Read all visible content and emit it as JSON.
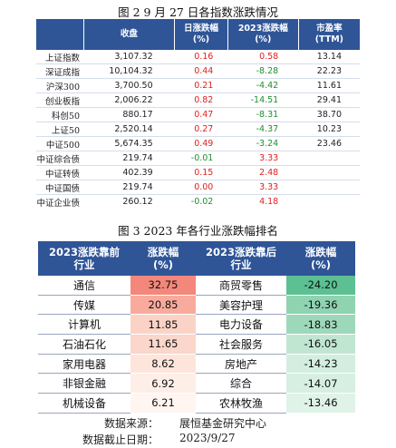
{
  "figure1": {
    "title": "图 2   9 月 27 日各指数涨跌情况",
    "headers": [
      "",
      "收盘",
      "日涨跌幅\n(%)",
      "2023涨跌幅\n(%)",
      "市盈率\n(TTM)"
    ],
    "rows": [
      {
        "name": "上证指数",
        "close": "3,107.32",
        "chg": "0.16",
        "ytd": "0.58",
        "pe": "13.14"
      },
      {
        "name": "深证成指",
        "close": "10,104.32",
        "chg": "0.44",
        "ytd": "-8.28",
        "pe": "22.23"
      },
      {
        "name": "沪深300",
        "close": "3,700.50",
        "chg": "0.21",
        "ytd": "-4.42",
        "pe": "11.61"
      },
      {
        "name": "创业板指",
        "close": "2,006.22",
        "chg": "0.82",
        "ytd": "-14.51",
        "pe": "29.41"
      },
      {
        "name": "科创50",
        "close": "880.17",
        "chg": "0.47",
        "ytd": "-8.31",
        "pe": "38.70"
      },
      {
        "name": "上证50",
        "close": "2,520.14",
        "chg": "0.27",
        "ytd": "-4.37",
        "pe": "10.23"
      },
      {
        "name": "中证500",
        "close": "5,674.35",
        "chg": "0.49",
        "ytd": "-3.24",
        "pe": "23.46"
      },
      {
        "name": "中证综合债",
        "close": "219.74",
        "chg": "-0.01",
        "ytd": "3.33",
        "pe": ""
      },
      {
        "name": "中证转债",
        "close": "402.39",
        "chg": "0.15",
        "ytd": "2.48",
        "pe": ""
      },
      {
        "name": "中证国债",
        "close": "219.74",
        "chg": "0.00",
        "ytd": "3.33",
        "pe": ""
      },
      {
        "name": "中证企业债",
        "close": "260.12",
        "chg": "-0.02",
        "ytd": "4.18",
        "pe": ""
      }
    ]
  },
  "figure2": {
    "title": "图 3   2023 年各行业涨跌幅排名",
    "headers": [
      "2023涨跌靠前\n行业",
      "涨跌幅\n(%)",
      "2023涨跌靠后\n行业",
      "涨跌幅\n(%)"
    ],
    "rows": [
      {
        "top_name": "通信",
        "top_val": "32.75",
        "bottom_name": "商贸零售",
        "bottom_val": "-24.20"
      },
      {
        "top_name": "传媒",
        "top_val": "20.85",
        "bottom_name": "美容护理",
        "bottom_val": "-19.36"
      },
      {
        "top_name": "计算机",
        "top_val": "11.85",
        "bottom_name": "电力设备",
        "bottom_val": "-18.83"
      },
      {
        "top_name": "石油石化",
        "top_val": "11.65",
        "bottom_name": "社会服务",
        "bottom_val": "-16.05"
      },
      {
        "top_name": "家用电器",
        "top_val": "8.62",
        "bottom_name": "房地产",
        "bottom_val": "-14.23"
      },
      {
        "top_name": "非银金融",
        "top_val": "6.92",
        "bottom_name": "综合",
        "bottom_val": "-14.07"
      },
      {
        "top_name": "机械设备",
        "top_val": "6.21",
        "bottom_name": "农林牧渔",
        "bottom_val": "-13.46"
      }
    ],
    "top_colors": [
      "#f4877b",
      "#f8ab9d",
      "#fbd3c6",
      "#fbd6ca",
      "#fde5dc",
      "#feeee8",
      "#fff5f1"
    ],
    "bottom_colors": [
      "#5cc093",
      "#8fd3b1",
      "#9ed8ba",
      "#c0e6d1",
      "#d3eee0",
      "#d6efe2",
      "#e0f3e9"
    ]
  },
  "source": {
    "label": "数据来源：",
    "value": "展恒基金研究中心",
    "date_label": "数据截止日期：",
    "date_value": "2023/9/27"
  }
}
